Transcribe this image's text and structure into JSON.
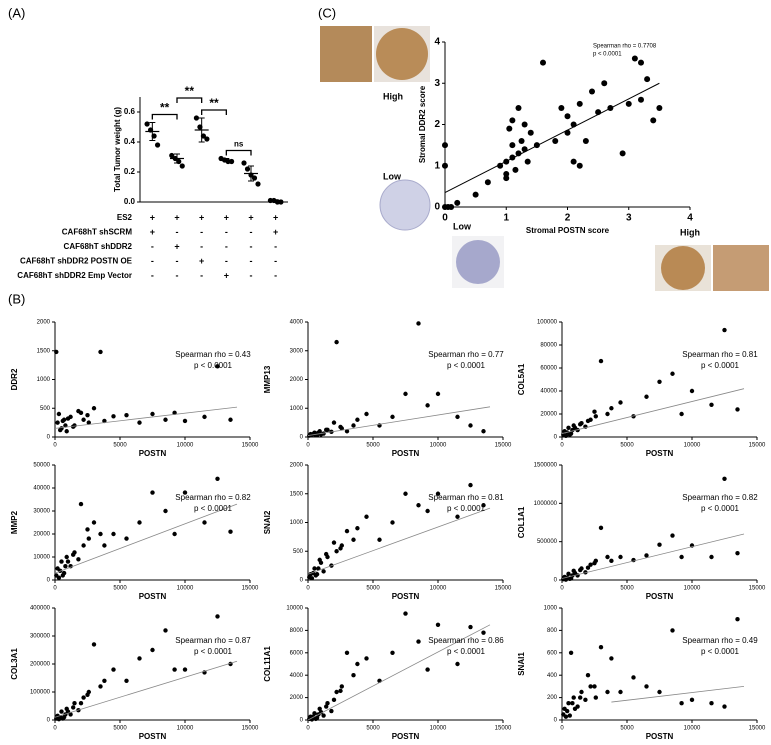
{
  "panel_labels": [
    "(A)",
    "(B)",
    "(C)"
  ],
  "chart_data": [
    {
      "type": "dot",
      "ylabel": "Total Tumor weight (g)",
      "ylim": [
        0,
        0.7
      ],
      "yticks": [
        {
          "value": 0,
          "label": "0.0"
        },
        0.2,
        0.4,
        0.6
      ],
      "color": "#000000",
      "groups": [
        {
          "values": [
            0.52,
            0.48,
            0.44,
            0.38
          ],
          "mean": 0.47,
          "sd": 0.06
        },
        {
          "values": [
            0.31,
            0.29,
            0.27,
            0.24
          ],
          "mean": 0.29,
          "sd": 0.03
        },
        {
          "values": [
            0.56,
            0.5,
            0.44,
            0.42
          ],
          "mean": 0.48,
          "sd": 0.08
        },
        {
          "values": [
            0.29,
            0.28,
            0.27,
            0.27
          ],
          "mean": 0.28,
          "sd": 0.01
        },
        {
          "values": [
            0.26,
            0.22,
            0.18,
            0.16,
            0.12
          ],
          "mean": 0.19,
          "sd": 0.05
        },
        {
          "values": [
            0.01,
            0.01,
            0,
            0
          ],
          "mean": 0.01,
          "sd": 0.005
        }
      ],
      "comparisons": [
        "**",
        "**",
        "**",
        "ns"
      ],
      "conditions": [
        {
          "label": "ES2",
          "signs": [
            "+",
            "+",
            "+",
            "+",
            "+",
            "+"
          ]
        },
        {
          "label": "CAF68hT shSCRM",
          "signs": [
            "+",
            "-",
            "-",
            "-",
            "-",
            "+"
          ]
        },
        {
          "label": "CAF68hT shDDR2",
          "signs": [
            "-",
            "+",
            "-",
            "-",
            "-",
            "-"
          ]
        },
        {
          "label": "CAF68hT shDDR2 POSTN OE",
          "signs": [
            "-",
            "-",
            "+",
            "-",
            "-",
            "-"
          ]
        },
        {
          "label": "CAF68hT shDDR2 Emp Vector",
          "signs": [
            "-",
            "-",
            "-",
            "+",
            "-",
            "-"
          ]
        }
      ]
    },
    {
      "type": "scatter",
      "xlabel": "Stromal POSTN score",
      "ylabel": "Stromal DDR2 score",
      "color": "#000000",
      "xlim": [
        0,
        4
      ],
      "ylim": [
        0,
        4
      ],
      "xticks": [
        0,
        1,
        2,
        3,
        4
      ],
      "yticks": [
        0,
        1,
        2,
        3,
        4
      ],
      "annotations": [
        "Spearman rho = 0.7708",
        "p < 0.0001"
      ],
      "image_labels": [
        "High",
        "Low",
        "Low",
        "High"
      ],
      "x": [
        0,
        0,
        0,
        0.05,
        0.1,
        0.2,
        0.5,
        0.7,
        0.9,
        1.0,
        1.0,
        1.05,
        1.1,
        1.1,
        1.1,
        1.15,
        1.2,
        1.2,
        1.25,
        1.3,
        1.3,
        1.35,
        1.4,
        1.5,
        1.6,
        1.8,
        1.9,
        2.0,
        2.0,
        2.1,
        2.1,
        2.2,
        2.3,
        2.4,
        2.5,
        2.6,
        2.7,
        2.9,
        3.0,
        3.1,
        3.2,
        3.3,
        3.4,
        3.5,
        3.2,
        2.2,
        1.0
      ],
      "values": [
        0,
        1.0,
        1.5,
        0,
        0,
        0.1,
        0.3,
        0.6,
        1.0,
        0.8,
        1.1,
        1.9,
        1.2,
        1.5,
        2.1,
        0.9,
        1.3,
        2.4,
        1.6,
        1.4,
        2.0,
        1.1,
        1.8,
        1.5,
        3.5,
        1.6,
        2.4,
        1.8,
        2.2,
        1.1,
        2.0,
        2.5,
        1.6,
        2.8,
        2.3,
        3.0,
        2.4,
        1.3,
        2.5,
        3.6,
        2.6,
        3.1,
        2.1,
        2.4,
        3.5,
        1.0,
        0.7
      ],
      "fit_x": [
        0,
        3.5
      ],
      "fit_y": [
        0.35,
        3.0
      ]
    },
    {
      "type": "scatter",
      "xlabel": "POSTN",
      "ylabel": "DDR2",
      "color": "#000000",
      "xlim": [
        0,
        15000
      ],
      "ylim": [
        0,
        2000
      ],
      "xticks": [
        0,
        5000,
        10000,
        15000
      ],
      "yticks": [
        0,
        500,
        1000,
        1500,
        2000
      ],
      "annotations": [
        "Spearman rho = 0.43",
        "p < 0.0001"
      ],
      "x": [
        100,
        200,
        300,
        500,
        700,
        900,
        1200,
        1500,
        1800,
        2200,
        2600,
        3000,
        3500,
        400,
        600,
        800,
        1000,
        1400,
        2000,
        2500,
        3800,
        4500,
        5500,
        6500,
        7500,
        8500,
        9200,
        10000,
        11500,
        12500,
        13500
      ],
      "values": [
        1480,
        250,
        400,
        150,
        300,
        100,
        350,
        200,
        450,
        300,
        250,
        500,
        1480,
        120,
        280,
        200,
        320,
        180,
        420,
        380,
        280,
        360,
        380,
        250,
        400,
        300,
        420,
        280,
        350,
        1230,
        300
      ],
      "fit_x": [
        0,
        14000
      ],
      "fit_y": [
        150,
        520
      ]
    },
    {
      "type": "scatter",
      "xlabel": "POSTN",
      "ylabel": "MMP13",
      "color": "#000000",
      "xlim": [
        0,
        15000
      ],
      "ylim": [
        0,
        4000
      ],
      "xticks": [
        0,
        5000,
        10000,
        15000
      ],
      "yticks": [
        0,
        1000,
        2000,
        3000,
        4000
      ],
      "annotations": [
        "Spearman rho = 0.77",
        "p < 0.0001"
      ],
      "x": [
        100,
        200,
        300,
        500,
        700,
        900,
        1200,
        1500,
        1800,
        2200,
        2600,
        3000,
        3500,
        400,
        600,
        800,
        1000,
        1400,
        2000,
        2500,
        3800,
        4500,
        5500,
        6500,
        7500,
        8500,
        9200,
        10000,
        11500,
        12500,
        13500
      ],
      "values": [
        50,
        100,
        80,
        150,
        60,
        200,
        120,
        250,
        180,
        3300,
        300,
        200,
        400,
        100,
        60,
        150,
        90,
        250,
        500,
        350,
        600,
        800,
        400,
        700,
        1500,
        3950,
        1100,
        1500,
        700,
        400,
        200
      ],
      "fit_x": [
        0,
        14000
      ],
      "fit_y": [
        50,
        1050
      ]
    },
    {
      "type": "scatter",
      "xlabel": "POSTN",
      "ylabel": "COL5A1",
      "color": "#000000",
      "xlim": [
        0,
        15000
      ],
      "ylim": [
        0,
        100000
      ],
      "xticks": [
        0,
        5000,
        10000,
        15000
      ],
      "yticks": [
        0,
        20000,
        40000,
        60000,
        80000,
        100000
      ],
      "annotations": [
        "Spearman rho = 0.81",
        "p < 0.0001"
      ],
      "x": [
        100,
        200,
        300,
        500,
        700,
        900,
        1200,
        1500,
        1800,
        2200,
        2600,
        3000,
        3500,
        400,
        600,
        800,
        1000,
        1400,
        2000,
        2500,
        3800,
        4500,
        5500,
        6500,
        7500,
        8500,
        9200,
        10000,
        11500,
        12500,
        13500
      ],
      "values": [
        2000,
        5000,
        1000,
        8000,
        3000,
        10000,
        6000,
        12000,
        9000,
        15000,
        18000,
        66000,
        20000,
        4000,
        2000,
        6000,
        8000,
        11000,
        14000,
        22000,
        25000,
        30000,
        18000,
        35000,
        48000,
        55000,
        20000,
        40000,
        28000,
        93000,
        24000
      ],
      "fit_x": [
        0,
        14000
      ],
      "fit_y": [
        3000,
        42000
      ]
    },
    {
      "type": "scatter",
      "xlabel": "POSTN",
      "ylabel": "MMP2",
      "color": "#000000",
      "xlim": [
        0,
        15000
      ],
      "ylim": [
        0,
        50000
      ],
      "xticks": [
        0,
        5000,
        10000,
        15000
      ],
      "yticks": [
        0,
        10000,
        20000,
        30000,
        40000,
        50000
      ],
      "annotations": [
        "Spearman rho = 0.82",
        "p < 0.0001"
      ],
      "x": [
        100,
        200,
        300,
        500,
        700,
        900,
        1200,
        1500,
        1800,
        2200,
        2600,
        3000,
        3500,
        400,
        600,
        800,
        1000,
        1400,
        2000,
        2500,
        3800,
        4500,
        5500,
        6500,
        7500,
        8500,
        9200,
        10000,
        11500,
        12500,
        13500
      ],
      "values": [
        2000,
        5000,
        1000,
        8000,
        3000,
        10000,
        6000,
        12000,
        9000,
        15000,
        18000,
        25000,
        20000,
        4000,
        2000,
        6000,
        8000,
        11000,
        33000,
        22000,
        15000,
        20000,
        18000,
        25000,
        38000,
        30000,
        20000,
        38000,
        25000,
        44000,
        21000
      ],
      "fit_x": [
        0,
        14000
      ],
      "fit_y": [
        3000,
        33000
      ]
    },
    {
      "type": "scatter",
      "xlabel": "POSTN",
      "ylabel": "SNAI2",
      "color": "#000000",
      "xlim": [
        0,
        15000
      ],
      "ylim": [
        0,
        2000
      ],
      "xticks": [
        0,
        5000,
        10000,
        15000
      ],
      "yticks": [
        0,
        500,
        1000,
        1500,
        2000
      ],
      "annotations": [
        "Spearman rho = 0.81",
        "p < 0.0001"
      ],
      "x": [
        100,
        200,
        300,
        500,
        700,
        900,
        1200,
        1500,
        1800,
        2200,
        2600,
        3000,
        3500,
        400,
        600,
        800,
        1000,
        1400,
        2000,
        2500,
        3800,
        4500,
        5500,
        6500,
        7500,
        8500,
        9200,
        10000,
        11500,
        12500,
        13500
      ],
      "values": [
        50,
        100,
        30,
        200,
        100,
        350,
        150,
        400,
        250,
        500,
        600,
        850,
        700,
        120,
        80,
        200,
        300,
        450,
        650,
        550,
        900,
        1100,
        700,
        1000,
        1500,
        1300,
        1200,
        1500,
        1100,
        1650,
        1300
      ],
      "fit_x": [
        0,
        14000
      ],
      "fit_y": [
        100,
        1250
      ]
    },
    {
      "type": "scatter",
      "xlabel": "POSTN",
      "ylabel": "COL1A1",
      "color": "#000000",
      "xlim": [
        0,
        15000
      ],
      "ylim": [
        0,
        1500000
      ],
      "xticks": [
        0,
        5000,
        10000,
        15000
      ],
      "yticks": [
        0,
        500000,
        1000000,
        1500000
      ],
      "annotations": [
        "Spearman rho = 0.82",
        "p < 0.0001"
      ],
      "x": [
        100,
        200,
        300,
        500,
        700,
        900,
        1200,
        1500,
        1800,
        2200,
        2600,
        3000,
        3500,
        400,
        600,
        800,
        1000,
        1400,
        2000,
        2500,
        3800,
        4500,
        5500,
        6500,
        7500,
        8500,
        9200,
        10000,
        11500,
        12500,
        13500
      ],
      "values": [
        10000,
        40000,
        5000,
        80000,
        20000,
        120000,
        60000,
        150000,
        100000,
        200000,
        250000,
        680000,
        300000,
        30000,
        15000,
        60000,
        90000,
        130000,
        160000,
        220000,
        250000,
        300000,
        260000,
        320000,
        460000,
        580000,
        300000,
        450000,
        300000,
        1320000,
        350000
      ],
      "fit_x": [
        0,
        14000
      ],
      "fit_y": [
        20000,
        600000
      ]
    },
    {
      "type": "scatter",
      "xlabel": "POSTN",
      "ylabel": "COL3A1",
      "color": "#000000",
      "xlim": [
        0,
        15000
      ],
      "ylim": [
        0,
        400000
      ],
      "xticks": [
        0,
        5000,
        10000,
        15000
      ],
      "yticks": [
        0,
        100000,
        200000,
        300000,
        400000
      ],
      "annotations": [
        "Spearman rho = 0.87",
        "p < 0.0001"
      ],
      "x": [
        100,
        200,
        300,
        500,
        700,
        900,
        1200,
        1500,
        1800,
        2200,
        2600,
        3000,
        3500,
        400,
        600,
        800,
        1000,
        1400,
        2000,
        2500,
        3800,
        4500,
        5500,
        6500,
        7500,
        8500,
        9200,
        10000,
        11500,
        12500,
        13500
      ],
      "values": [
        5000,
        15000,
        3000,
        30000,
        10000,
        40000,
        20000,
        60000,
        35000,
        80000,
        100000,
        270000,
        120000,
        10000,
        5000,
        20000,
        30000,
        45000,
        60000,
        90000,
        140000,
        180000,
        140000,
        220000,
        250000,
        320000,
        180000,
        180000,
        170000,
        370000,
        200000
      ],
      "fit_x": [
        0,
        14000
      ],
      "fit_y": [
        10000,
        210000
      ]
    },
    {
      "type": "scatter",
      "xlabel": "POSTN",
      "ylabel": "COL11A1",
      "color": "#000000",
      "xlim": [
        0,
        15000
      ],
      "ylim": [
        0,
        10000
      ],
      "xticks": [
        0,
        5000,
        10000,
        15000
      ],
      "yticks": [
        0,
        2000,
        4000,
        6000,
        8000,
        10000
      ],
      "annotations": [
        "Spearman rho = 0.86",
        "p < 0.0001"
      ],
      "x": [
        100,
        200,
        300,
        500,
        700,
        900,
        1200,
        1500,
        1800,
        2200,
        2600,
        3000,
        3500,
        400,
        600,
        800,
        1000,
        1400,
        2000,
        2500,
        3800,
        4500,
        5500,
        6500,
        7500,
        8500,
        9200,
        10000,
        11500,
        12500,
        13500
      ],
      "values": [
        100,
        300,
        50,
        600,
        200,
        1000,
        400,
        1500,
        800,
        2500,
        3000,
        6000,
        4000,
        300,
        100,
        500,
        700,
        1200,
        1800,
        2600,
        5000,
        5500,
        3500,
        6000,
        9500,
        7000,
        4500,
        8500,
        5000,
        8300,
        7800
      ],
      "fit_x": [
        0,
        14000
      ],
      "fit_y": [
        0,
        8500
      ]
    },
    {
      "type": "scatter",
      "xlabel": "POSTN",
      "ylabel": "SNAI1",
      "color": "#000000",
      "xlim": [
        0,
        15000
      ],
      "ylim": [
        0,
        1000
      ],
      "xticks": [
        0,
        5000,
        10000,
        15000
      ],
      "yticks": [
        0,
        200,
        400,
        600,
        800,
        1000
      ],
      "annotations": [
        "Spearman rho = 0.49",
        "p < 0.0001"
      ],
      "x": [
        100,
        200,
        300,
        500,
        700,
        900,
        1200,
        1500,
        1800,
        2200,
        2600,
        3000,
        3500,
        400,
        600,
        800,
        1000,
        1400,
        2000,
        2500,
        3800,
        4500,
        5500,
        6500,
        7500,
        8500,
        9200,
        10000,
        11500,
        12500,
        13500
      ],
      "values": [
        50,
        100,
        30,
        150,
        600,
        200,
        120,
        250,
        180,
        300,
        200,
        650,
        250,
        80,
        40,
        150,
        100,
        200,
        400,
        300,
        550,
        250,
        380,
        300,
        250,
        800,
        150,
        180,
        150,
        120,
        900
      ],
      "fit_x": [
        3800,
        14000
      ],
      "fit_y": [
        160,
        300
      ]
    }
  ]
}
